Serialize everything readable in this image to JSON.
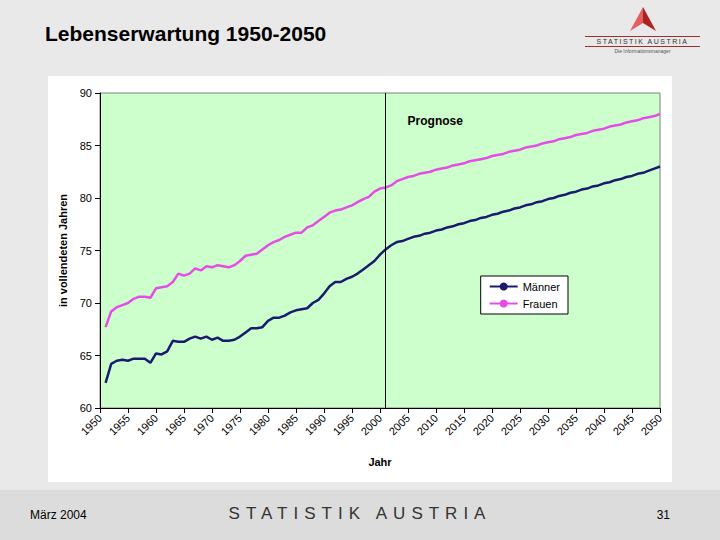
{
  "slide": {
    "logo_text": "STATISTIK AUSTRIA",
    "logo_tagline": "Die Informationsmanager",
    "footer_date": "März 2004",
    "footer_brand": "STATISTIK AUSTRIA",
    "page_number": "31"
  },
  "chart_data": {
    "type": "line",
    "title": "Lebenserwartung 1950-2050",
    "x_label": "Jahr",
    "y_label": "in vollendeten Jahren",
    "x": [
      1951,
      1952,
      1953,
      1954,
      1955,
      1956,
      1957,
      1958,
      1959,
      1960,
      1961,
      1962,
      1963,
      1964,
      1965,
      1966,
      1967,
      1968,
      1969,
      1970,
      1971,
      1972,
      1973,
      1974,
      1975,
      1976,
      1977,
      1978,
      1979,
      1980,
      1981,
      1982,
      1983,
      1984,
      1985,
      1986,
      1987,
      1988,
      1989,
      1990,
      1991,
      1992,
      1993,
      1994,
      1995,
      1996,
      1997,
      1998,
      1999,
      2000,
      2001,
      2002,
      2003,
      2004,
      2005,
      2006,
      2007,
      2008,
      2009,
      2010,
      2011,
      2012,
      2013,
      2014,
      2015,
      2016,
      2017,
      2018,
      2019,
      2020,
      2021,
      2022,
      2023,
      2024,
      2025,
      2026,
      2027,
      2028,
      2029,
      2030,
      2031,
      2032,
      2033,
      2034,
      2035,
      2036,
      2037,
      2038,
      2039,
      2040,
      2041,
      2042,
      2043,
      2044,
      2045,
      2046,
      2047,
      2048,
      2049,
      2050
    ],
    "series": [
      {
        "name": "Männer",
        "color": "#1a1a6e",
        "values": [
          62.4,
          64.2,
          64.5,
          64.6,
          64.5,
          64.7,
          64.7,
          64.7,
          64.3,
          65.2,
          65.1,
          65.4,
          66.4,
          66.3,
          66.3,
          66.6,
          66.8,
          66.6,
          66.8,
          66.5,
          66.7,
          66.4,
          66.4,
          66.5,
          66.8,
          67.2,
          67.6,
          67.6,
          67.7,
          68.3,
          68.6,
          68.6,
          68.8,
          69.1,
          69.3,
          69.4,
          69.5,
          70.0,
          70.3,
          70.9,
          71.6,
          72.0,
          72.0,
          72.3,
          72.5,
          72.8,
          73.2,
          73.6,
          74.0,
          74.6,
          75.1,
          75.5,
          75.8,
          75.9,
          76.1,
          76.3,
          76.4,
          76.6,
          76.7,
          76.9,
          77.0,
          77.2,
          77.3,
          77.5,
          77.6,
          77.8,
          77.9,
          78.1,
          78.2,
          78.4,
          78.5,
          78.7,
          78.8,
          79.0,
          79.1,
          79.3,
          79.4,
          79.6,
          79.7,
          79.9,
          80.0,
          80.2,
          80.3,
          80.5,
          80.6,
          80.8,
          80.9,
          81.1,
          81.2,
          81.4,
          81.5,
          81.7,
          81.8,
          82.0,
          82.1,
          82.3,
          82.4,
          82.6,
          82.8,
          83.0
        ]
      },
      {
        "name": "Frauen",
        "color": "#e64ce6",
        "values": [
          67.7,
          69.2,
          69.6,
          69.8,
          70.0,
          70.4,
          70.6,
          70.6,
          70.5,
          71.4,
          71.5,
          71.6,
          72.0,
          72.8,
          72.6,
          72.8,
          73.3,
          73.1,
          73.5,
          73.4,
          73.6,
          73.5,
          73.4,
          73.6,
          74.0,
          74.5,
          74.6,
          74.7,
          75.1,
          75.5,
          75.8,
          76.0,
          76.3,
          76.5,
          76.7,
          76.7,
          77.2,
          77.4,
          77.8,
          78.2,
          78.6,
          78.8,
          78.9,
          79.1,
          79.3,
          79.6,
          79.9,
          80.1,
          80.6,
          80.9,
          81.0,
          81.2,
          81.6,
          81.8,
          82.0,
          82.1,
          82.3,
          82.4,
          82.5,
          82.7,
          82.8,
          82.9,
          83.1,
          83.2,
          83.3,
          83.5,
          83.6,
          83.7,
          83.8,
          84.0,
          84.1,
          84.2,
          84.4,
          84.5,
          84.6,
          84.8,
          84.9,
          85.0,
          85.2,
          85.3,
          85.4,
          85.6,
          85.7,
          85.8,
          86.0,
          86.1,
          86.2,
          86.4,
          86.5,
          86.6,
          86.8,
          86.9,
          87.0,
          87.2,
          87.3,
          87.4,
          87.6,
          87.7,
          87.8,
          88.0
        ]
      }
    ],
    "xlim": [
      1950,
      2050
    ],
    "xticks": [
      1950,
      1955,
      1960,
      1965,
      1970,
      1975,
      1980,
      1985,
      1990,
      1995,
      2000,
      2005,
      2010,
      2015,
      2020,
      2025,
      2030,
      2035,
      2040,
      2045,
      2050
    ],
    "ylim": [
      60,
      90
    ],
    "yticks": [
      60,
      65,
      70,
      75,
      80,
      85,
      90
    ],
    "grid": false,
    "legend": "right",
    "annotations": [
      {
        "text": "Prognose",
        "x": 2001
      }
    ]
  }
}
